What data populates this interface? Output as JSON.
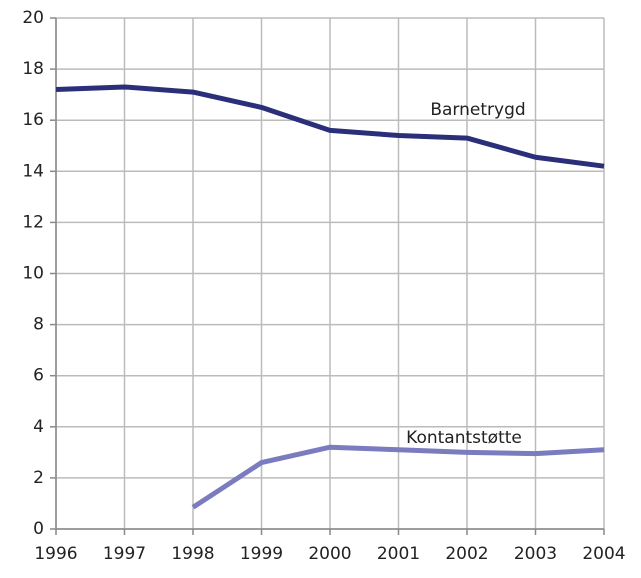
{
  "chart_data": {
    "type": "line",
    "x": [
      1996,
      1997,
      1998,
      1999,
      2000,
      2001,
      2002,
      2003,
      2004
    ],
    "series": [
      {
        "name": "Barnetrygd",
        "color": "#2b2f7a",
        "values": [
          17.2,
          17.3,
          17.1,
          16.5,
          15.6,
          15.4,
          15.3,
          14.55,
          14.2
        ]
      },
      {
        "name": "Kontantstøtte",
        "color": "#7b7bbf",
        "values": [
          null,
          null,
          0.85,
          2.6,
          3.2,
          3.1,
          3.0,
          2.95,
          3.1
        ]
      }
    ],
    "xlim": [
      1996,
      2004
    ],
    "xticks": [
      1996,
      1997,
      1998,
      1999,
      2000,
      2001,
      2002,
      2003,
      2004
    ],
    "ylim": [
      0,
      20
    ],
    "yticks": [
      0,
      2,
      4,
      6,
      8,
      10,
      12,
      14,
      16,
      18,
      20
    ],
    "grid": true
  }
}
